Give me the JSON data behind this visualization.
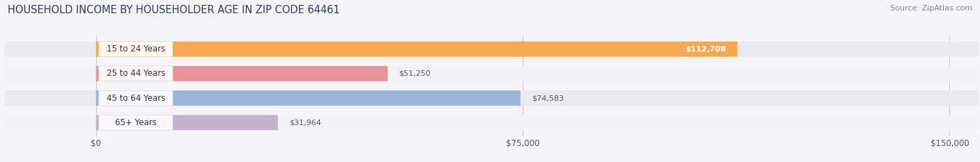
{
  "title": "HOUSEHOLD INCOME BY HOUSEHOLDER AGE IN ZIP CODE 64461",
  "source": "Source: ZipAtlas.com",
  "categories": [
    "15 to 24 Years",
    "25 to 44 Years",
    "45 to 64 Years",
    "65+ Years"
  ],
  "values": [
    112708,
    51250,
    74583,
    31964
  ],
  "bar_colors": [
    "#F5A94E",
    "#E8929A",
    "#9AB5D5",
    "#C4B2D0"
  ],
  "bar_track_colors": [
    "#EBEBEE",
    "#F3F3F6",
    "#EBEBEE",
    "#F3F3F6"
  ],
  "value_labels": [
    "$112,708",
    "$51,250",
    "$74,583",
    "$31,964"
  ],
  "title_fontsize": 10.5,
  "source_fontsize": 8,
  "tick_fontsize": 8.5,
  "bar_label_fontsize": 8,
  "cat_label_fontsize": 8.5,
  "xlim_max": 150000,
  "xticks": [
    0,
    75000,
    150000
  ],
  "xtick_labels": [
    "$0",
    "$75,000",
    "$150,000"
  ],
  "background_color": "#F5F5F8"
}
